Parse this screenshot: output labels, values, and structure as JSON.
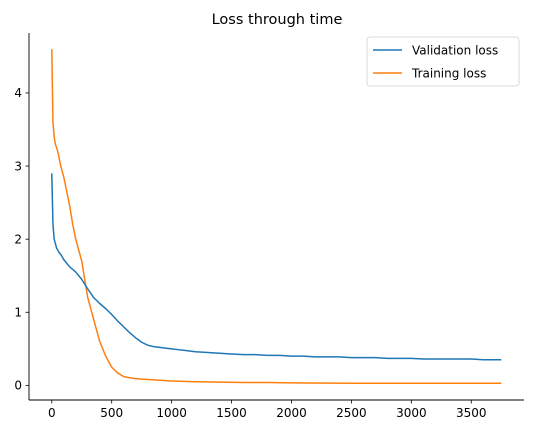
{
  "chart_data": {
    "type": "line",
    "title": "Loss through time",
    "xlabel": "",
    "ylabel": "",
    "xlim": [
      -190,
      3940
    ],
    "ylim": [
      -0.2,
      4.82
    ],
    "xticks": [
      0,
      500,
      1000,
      1500,
      2000,
      2500,
      3000,
      3500
    ],
    "yticks": [
      0,
      1,
      2,
      3,
      4
    ],
    "grid": false,
    "legend_position": "top-right",
    "series": [
      {
        "name": "Validation loss",
        "color": "#1f77b4",
        "x": [
          0,
          10,
          20,
          40,
          60,
          80,
          100,
          150,
          200,
          250,
          300,
          350,
          400,
          450,
          500,
          550,
          600,
          650,
          700,
          750,
          800,
          850,
          900,
          950,
          1000,
          1050,
          1100,
          1200,
          1300,
          1400,
          1500,
          1600,
          1700,
          1800,
          1900,
          2000,
          2100,
          2200,
          2300,
          2400,
          2500,
          2600,
          2700,
          2800,
          2900,
          3000,
          3100,
          3200,
          3300,
          3400,
          3500,
          3600,
          3700,
          3750
        ],
        "y": [
          2.9,
          2.2,
          2.0,
          1.88,
          1.82,
          1.78,
          1.72,
          1.62,
          1.55,
          1.45,
          1.32,
          1.2,
          1.12,
          1.05,
          0.97,
          0.88,
          0.8,
          0.72,
          0.65,
          0.59,
          0.55,
          0.53,
          0.52,
          0.51,
          0.5,
          0.49,
          0.48,
          0.46,
          0.45,
          0.44,
          0.43,
          0.42,
          0.42,
          0.41,
          0.41,
          0.4,
          0.4,
          0.39,
          0.39,
          0.39,
          0.38,
          0.38,
          0.38,
          0.37,
          0.37,
          0.37,
          0.36,
          0.36,
          0.36,
          0.36,
          0.36,
          0.35,
          0.35,
          0.35
        ]
      },
      {
        "name": "Training loss",
        "color": "#ff7f0e",
        "x": [
          0,
          5,
          10,
          20,
          30,
          50,
          75,
          100,
          125,
          150,
          175,
          200,
          225,
          250,
          275,
          300,
          350,
          400,
          450,
          500,
          550,
          600,
          700,
          800,
          900,
          1000,
          1200,
          1400,
          1600,
          1800,
          2000,
          2500,
          3000,
          3500,
          3750
        ],
        "y": [
          4.6,
          4.1,
          3.6,
          3.4,
          3.3,
          3.2,
          3.0,
          2.85,
          2.65,
          2.45,
          2.2,
          2.0,
          1.85,
          1.7,
          1.45,
          1.2,
          0.9,
          0.6,
          0.4,
          0.25,
          0.17,
          0.12,
          0.09,
          0.08,
          0.07,
          0.06,
          0.05,
          0.045,
          0.04,
          0.04,
          0.035,
          0.03,
          0.03,
          0.03,
          0.03
        ]
      }
    ]
  }
}
